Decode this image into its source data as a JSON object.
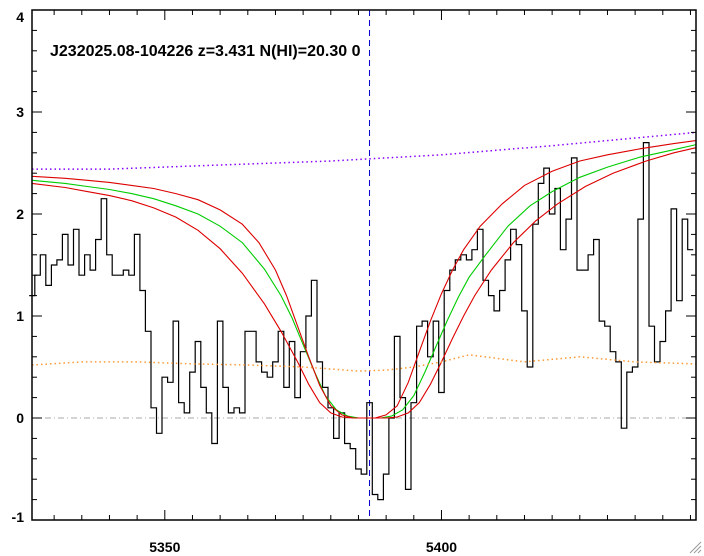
{
  "chart_data": {
    "type": "line",
    "title": "J232025.08-104226 z=3.431 N(HI)=20.30 0",
    "xlabel": "",
    "ylabel": "",
    "xlim": [
      5326,
      5446
    ],
    "ylim": [
      -1,
      4
    ],
    "xticks": [
      5350,
      5400
    ],
    "yticks": [
      -1,
      0,
      1,
      2,
      3,
      4
    ],
    "grid": false,
    "line_center_x": 5387,
    "zero_level": 0,
    "series": [
      {
        "color": "#000000",
        "style": "steps",
        "x": [
          5326,
          5327,
          5328,
          5329,
          5330,
          5331,
          5332,
          5333,
          5334,
          5335,
          5336,
          5337,
          5338,
          5339,
          5340,
          5341,
          5342,
          5343,
          5344,
          5345,
          5346,
          5347,
          5348,
          5349,
          5350,
          5351,
          5352,
          5353,
          5354,
          5355,
          5356,
          5357,
          5358,
          5359,
          5360,
          5361,
          5362,
          5363,
          5364,
          5365,
          5366,
          5367,
          5368,
          5369,
          5370,
          5371,
          5372,
          5373,
          5374,
          5375,
          5376,
          5377,
          5378,
          5379,
          5380,
          5381,
          5382,
          5383,
          5384,
          5385,
          5386,
          5387,
          5388,
          5389,
          5390,
          5391,
          5392,
          5393,
          5394,
          5395,
          5396,
          5397,
          5398,
          5399,
          5400,
          5401,
          5402,
          5403,
          5404,
          5405,
          5406,
          5407,
          5408,
          5409,
          5410,
          5411,
          5412,
          5413,
          5414,
          5415,
          5416,
          5417,
          5418,
          5419,
          5420,
          5421,
          5422,
          5423,
          5424,
          5425,
          5426,
          5427,
          5428,
          5429,
          5430,
          5431,
          5432,
          5433,
          5434,
          5435,
          5436,
          5437,
          5438,
          5439,
          5440,
          5441,
          5442,
          5443,
          5444,
          5445
        ],
        "values": [
          1.2,
          1.4,
          1.6,
          1.3,
          1.5,
          1.55,
          1.8,
          1.5,
          1.85,
          1.4,
          1.6,
          1.45,
          1.75,
          2.15,
          1.6,
          1.4,
          1.4,
          1.45,
          1.4,
          1.8,
          1.25,
          0.85,
          0.1,
          -0.15,
          0.4,
          0.35,
          0.95,
          0.15,
          0.05,
          0.45,
          0.75,
          0.3,
          0.05,
          -0.25,
          0.95,
          0.3,
          0.05,
          0.1,
          0.05,
          0.85,
          0.85,
          0.55,
          0.45,
          0.4,
          0.55,
          0.85,
          0.3,
          0.75,
          0.2,
          0.65,
          1.0,
          1.35,
          0.55,
          0.3,
          0.1,
          -0.2,
          0.05,
          -0.25,
          -0.3,
          -0.5,
          -0.55,
          0.15,
          -0.75,
          -0.8,
          -0.55,
          0.0,
          0.8,
          0.2,
          -0.7,
          0.15,
          0.9,
          0.95,
          0.6,
          0.95,
          0.25,
          1.25,
          1.45,
          1.55,
          1.6,
          1.55,
          1.65,
          1.85,
          1.35,
          1.2,
          1.05,
          1.25,
          1.55,
          1.85,
          1.7,
          1.05,
          0.5,
          1.9,
          2.3,
          2.45,
          2.0,
          2.25,
          1.65,
          1.95,
          2.55,
          1.45,
          1.45,
          1.6,
          1.75,
          0.95,
          0.9,
          0.65,
          0.55,
          -0.1,
          0.45,
          0.5,
          1.95,
          2.7,
          0.9,
          0.55,
          0.75,
          1.05,
          2.05,
          1.15,
          1.95,
          1.65
        ]
      },
      {
        "color": "#00cc00",
        "style": "line",
        "x": [
          5326,
          5332,
          5336,
          5340,
          5344,
          5348,
          5352,
          5356,
          5360,
          5364,
          5368,
          5371,
          5373,
          5375,
          5377,
          5379,
          5381,
          5383,
          5385,
          5387,
          5389,
          5391,
          5393,
          5395,
          5397,
          5399,
          5401,
          5403,
          5405,
          5408,
          5412,
          5416,
          5420,
          5425,
          5430,
          5436,
          5442,
          5446
        ],
        "values": [
          2.33,
          2.3,
          2.27,
          2.24,
          2.2,
          2.15,
          2.08,
          2.0,
          1.88,
          1.72,
          1.46,
          1.2,
          0.98,
          0.72,
          0.46,
          0.22,
          0.08,
          0.02,
          0.0,
          0.0,
          0.0,
          0.02,
          0.08,
          0.22,
          0.45,
          0.7,
          0.95,
          1.18,
          1.38,
          1.6,
          1.88,
          2.08,
          2.22,
          2.36,
          2.46,
          2.56,
          2.63,
          2.68
        ]
      },
      {
        "color": "#dd0000",
        "style": "line",
        "x": [
          5326,
          5332,
          5336,
          5340,
          5344,
          5348,
          5352,
          5356,
          5360,
          5364,
          5367,
          5370,
          5372,
          5374,
          5376,
          5378,
          5380,
          5382,
          5384,
          5386,
          5388,
          5390,
          5392,
          5394,
          5396,
          5398,
          5400,
          5402,
          5404,
          5407,
          5411,
          5415,
          5420,
          5425,
          5430,
          5436,
          5442,
          5446
        ],
        "values": [
          2.37,
          2.35,
          2.33,
          2.31,
          2.28,
          2.25,
          2.2,
          2.14,
          2.04,
          1.9,
          1.72,
          1.45,
          1.2,
          0.9,
          0.6,
          0.32,
          0.12,
          0.03,
          0.0,
          0.0,
          0.0,
          0.03,
          0.12,
          0.35,
          0.65,
          0.95,
          1.22,
          1.45,
          1.65,
          1.88,
          2.1,
          2.28,
          2.42,
          2.52,
          2.58,
          2.64,
          2.69,
          2.72
        ]
      },
      {
        "color": "#dd0000",
        "style": "line",
        "x": [
          5326,
          5332,
          5336,
          5340,
          5344,
          5348,
          5352,
          5356,
          5360,
          5364,
          5368,
          5371,
          5374,
          5376,
          5378,
          5380,
          5382,
          5384,
          5386,
          5388,
          5390,
          5392,
          5394,
          5396,
          5398,
          5400,
          5402,
          5404,
          5406,
          5409,
          5413,
          5417,
          5421,
          5426,
          5431,
          5437,
          5442,
          5446
        ],
        "values": [
          2.3,
          2.26,
          2.22,
          2.18,
          2.13,
          2.06,
          1.97,
          1.84,
          1.66,
          1.42,
          1.12,
          0.85,
          0.55,
          0.33,
          0.15,
          0.05,
          0.01,
          0.0,
          0.0,
          0.0,
          0.0,
          0.01,
          0.05,
          0.15,
          0.33,
          0.55,
          0.78,
          1.0,
          1.2,
          1.45,
          1.72,
          1.93,
          2.1,
          2.27,
          2.4,
          2.52,
          2.6,
          2.65
        ]
      },
      {
        "color": "#8800ff",
        "style": "dotted",
        "x": [
          5326,
          5340,
          5360,
          5380,
          5400,
          5420,
          5446
        ],
        "values": [
          2.44,
          2.44,
          2.48,
          2.52,
          2.58,
          2.67,
          2.8
        ]
      },
      {
        "color": "#ff9933",
        "style": "dotted",
        "x": [
          5326,
          5335,
          5345,
          5355,
          5365,
          5375,
          5380,
          5385,
          5390,
          5395,
          5400,
          5405,
          5415,
          5425,
          5435,
          5446
        ],
        "values": [
          0.52,
          0.55,
          0.55,
          0.53,
          0.52,
          0.5,
          0.48,
          0.46,
          0.47,
          0.5,
          0.55,
          0.62,
          0.55,
          0.6,
          0.55,
          0.53
        ]
      }
    ]
  }
}
